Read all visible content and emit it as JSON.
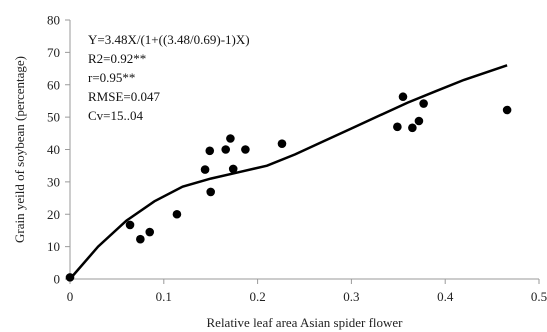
{
  "chart_data": {
    "type": "scatter",
    "xlabel": "Relative leaf area Asian spider flower",
    "ylabel": "Grain yeild of soybean (percentage)",
    "xlim": [
      0,
      0.5
    ],
    "ylim": [
      0,
      80
    ],
    "x_ticks": [
      "0",
      "0.1",
      "0.2",
      "0.3",
      "0.4",
      "0.5"
    ],
    "y_ticks": [
      "0",
      "10",
      "20",
      "30",
      "40",
      "50",
      "60",
      "70",
      "80"
    ],
    "grid": false,
    "legend": "none",
    "annotations": [
      "Y=3.48X/(1+((3.48/0.69)-1)X)",
      "R2=0.92**",
      "r=0.95**",
      "RMSE=0.047",
      "Cv=15..04"
    ],
    "points": [
      {
        "x": 0.0,
        "y": 0.5
      },
      {
        "x": 0.064,
        "y": 16.7
      },
      {
        "x": 0.075,
        "y": 12.3
      },
      {
        "x": 0.085,
        "y": 14.5
      },
      {
        "x": 0.114,
        "y": 20.0
      },
      {
        "x": 0.144,
        "y": 33.8
      },
      {
        "x": 0.149,
        "y": 39.6
      },
      {
        "x": 0.15,
        "y": 26.9
      },
      {
        "x": 0.166,
        "y": 40.0
      },
      {
        "x": 0.171,
        "y": 43.4
      },
      {
        "x": 0.174,
        "y": 34.0
      },
      {
        "x": 0.187,
        "y": 40.0
      },
      {
        "x": 0.226,
        "y": 41.8
      },
      {
        "x": 0.349,
        "y": 47.0
      },
      {
        "x": 0.355,
        "y": 56.3
      },
      {
        "x": 0.365,
        "y": 46.7
      },
      {
        "x": 0.372,
        "y": 48.8
      },
      {
        "x": 0.377,
        "y": 54.2
      },
      {
        "x": 0.466,
        "y": 52.2
      }
    ],
    "fit_line": {
      "x": [
        0.0,
        0.03,
        0.06,
        0.09,
        0.12,
        0.15,
        0.18,
        0.21,
        0.24,
        0.27,
        0.3,
        0.33,
        0.36,
        0.39,
        0.42,
        0.466
      ],
      "y": [
        0.0,
        10.0,
        18.0,
        24.0,
        28.5,
        31.0,
        33.0,
        35.0,
        38.5,
        42.5,
        46.5,
        50.5,
        54.5,
        58.0,
        61.5,
        66.0
      ]
    },
    "colors": {
      "points": "#000000",
      "fit_line": "#000000",
      "axis": "#9a9a9a"
    }
  }
}
